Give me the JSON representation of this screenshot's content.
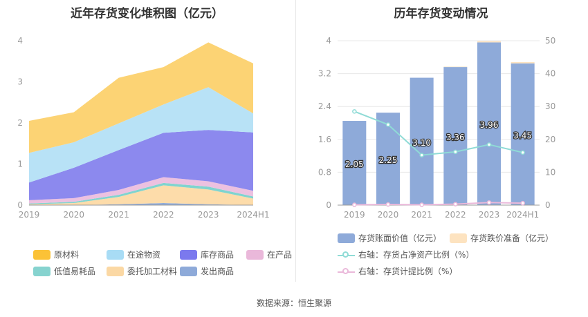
{
  "left_title": "近年存货变化堆积图（亿元）",
  "right_title": "历年存货变动情况",
  "source": "数据来源：恒生聚源",
  "chart_data": [
    {
      "type": "area",
      "stacked": true,
      "title": "近年存货变化堆积图（亿元）",
      "categories": [
        "2019",
        "2020",
        "2021",
        "2022",
        "2023",
        "2024H1"
      ],
      "y_ticks": [
        "0",
        "1",
        "2",
        "3",
        "4"
      ],
      "ylim": [
        0,
        4
      ],
      "series": [
        {
          "name": "发出商品",
          "color": "#8eaad9",
          "values": [
            0.0,
            0.0,
            0.02,
            0.05,
            0.02,
            0.0
          ]
        },
        {
          "name": "委托加工材料",
          "color": "#fddcaa",
          "values": [
            0.02,
            0.05,
            0.18,
            0.43,
            0.36,
            0.16
          ]
        },
        {
          "name": "低值易耗品",
          "color": "#80d4cf",
          "values": [
            0.02,
            0.03,
            0.05,
            0.06,
            0.07,
            0.05
          ]
        },
        {
          "name": "在产品",
          "color": "#ecc1e0",
          "values": [
            0.08,
            0.09,
            0.12,
            0.14,
            0.13,
            0.14
          ]
        },
        {
          "name": "库存商品",
          "color": "#8c89ee",
          "values": [
            0.43,
            0.74,
            0.97,
            1.08,
            1.25,
            1.42
          ]
        },
        {
          "name": "在途物资",
          "color": "#b8e2f6",
          "values": [
            0.72,
            0.62,
            0.65,
            0.69,
            1.04,
            0.46
          ]
        },
        {
          "name": "原材料",
          "color": "#fcd374",
          "values": [
            0.78,
            0.73,
            1.11,
            0.91,
            1.09,
            1.22
          ]
        }
      ],
      "legend_order": [
        "原材料",
        "在途物资",
        "库存商品",
        "在产品",
        "低值易耗品",
        "委托加工材料",
        "发出商品"
      ],
      "legend_colors": [
        "#fbc237",
        "#a8dcf5",
        "#7b79ee",
        "#eab8da",
        "#86d3cf",
        "#fbd8a4",
        "#8eaad9"
      ],
      "legend_position": "bottom",
      "grid": false
    },
    {
      "type": "bar",
      "title": "历年存货变动情况",
      "categories": [
        "2019",
        "2020",
        "2021",
        "2022",
        "2023",
        "2024H1"
      ],
      "y_ticks": [
        "0",
        "0.8",
        "1.6",
        "2.4",
        "3.2",
        "4"
      ],
      "ylim": [
        0,
        4
      ],
      "y2_ticks": [
        "0",
        "10",
        "20",
        "30",
        "40",
        "50"
      ],
      "y2lim": [
        0,
        50
      ],
      "series": [
        {
          "name": "存货账面价值（亿元）",
          "axis": "left",
          "kind": "bar",
          "color": "#8eaad9",
          "values": [
            2.05,
            2.25,
            3.1,
            3.36,
            3.96,
            3.45
          ],
          "labels": [
            "2.05",
            "2.25",
            "3.10",
            "3.36",
            "3.96",
            "3.45"
          ]
        },
        {
          "name": "存货跌价准备（亿元）",
          "axis": "left",
          "kind": "bar",
          "color": "#fde3c0",
          "values": [
            0.0,
            0.0,
            0.0,
            0.01,
            0.03,
            0.03
          ]
        },
        {
          "name": "右轴：存货占净资产比例（%）",
          "axis": "right",
          "kind": "line",
          "color": "#8fdbd6",
          "values": [
            28.5,
            24.5,
            15.2,
            16.2,
            18.4,
            16.0
          ]
        },
        {
          "name": "右轴：存货计提比例（%）",
          "axis": "right",
          "kind": "line",
          "color": "#eab8da",
          "values": [
            0.1,
            0.2,
            0.1,
            0.3,
            0.8,
            0.6
          ]
        }
      ],
      "legend_position": "bottom",
      "grid": true
    }
  ]
}
